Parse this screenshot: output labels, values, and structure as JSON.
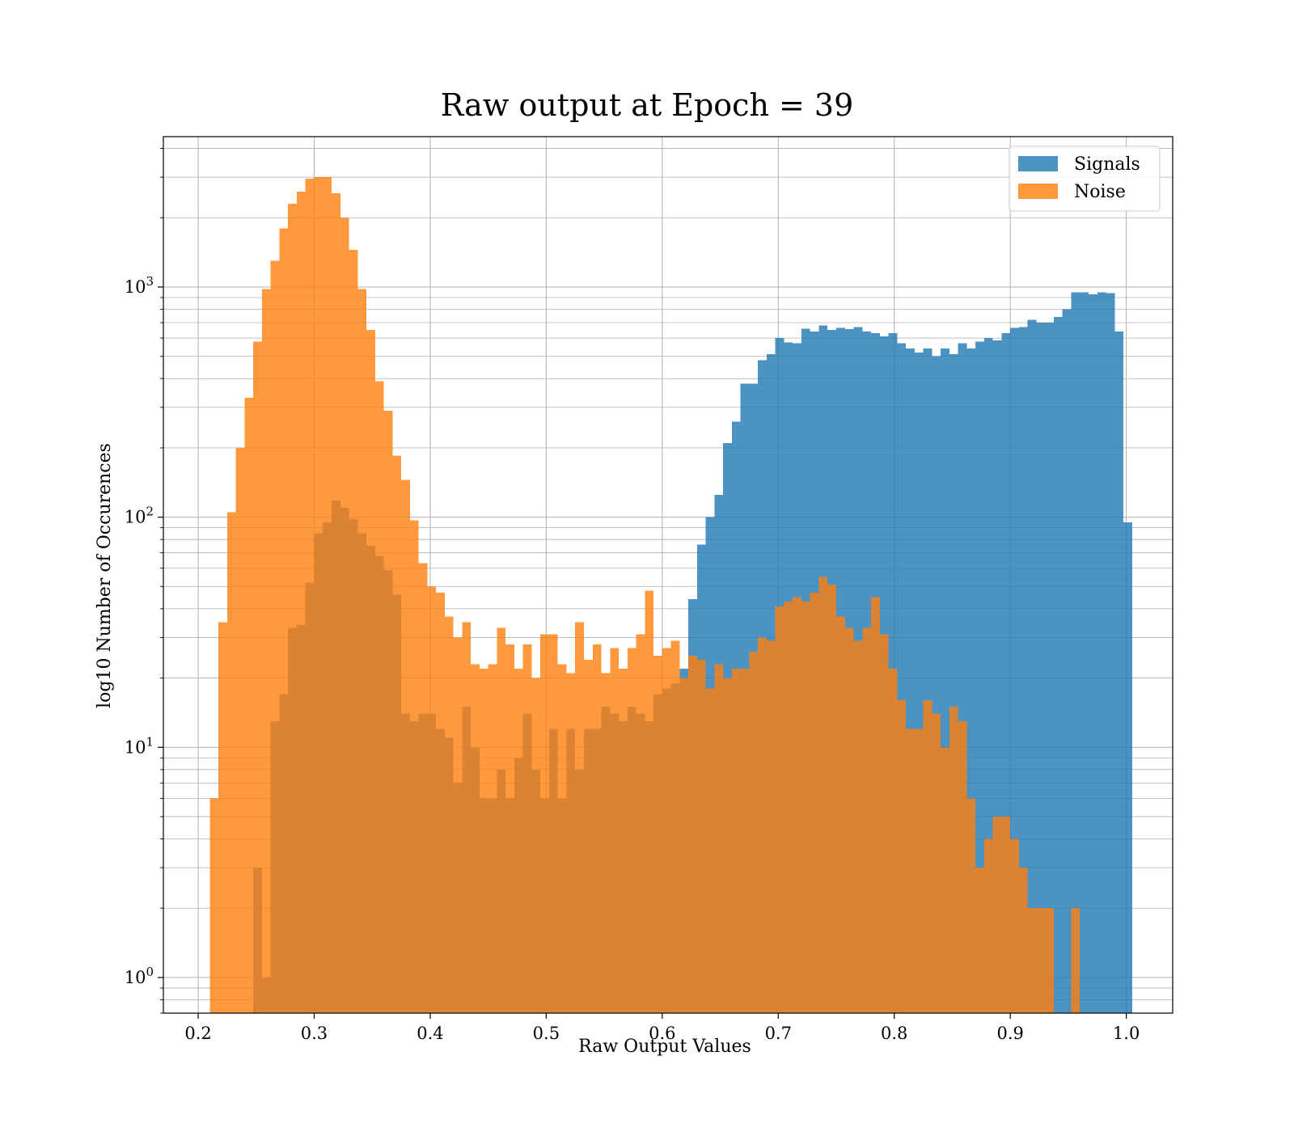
{
  "chart_data": {
    "type": "histogram",
    "title": "Raw output at Epoch = 39",
    "xlabel": "Raw Output Values",
    "ylabel": "log10 Number of Occurences",
    "x_scale": "linear",
    "y_scale": "log",
    "xlim": [
      0.17,
      1.04
    ],
    "ylim": [
      0.7,
      4500
    ],
    "x_ticks": [
      0.2,
      0.3,
      0.4,
      0.5,
      0.6,
      0.7,
      0.8,
      0.9,
      1.0
    ],
    "x_tick_labels": [
      "0.2",
      "0.3",
      "0.4",
      "0.5",
      "0.6",
      "0.7",
      "0.8",
      "0.9",
      "1.0"
    ],
    "y_ticks": [
      1,
      10,
      100,
      1000
    ],
    "y_tick_labels": [
      {
        "base": "10",
        "exp": "0"
      },
      {
        "base": "10",
        "exp": "1"
      },
      {
        "base": "10",
        "exp": "2"
      },
      {
        "base": "10",
        "exp": "3"
      }
    ],
    "grid": true,
    "grid_minor_y": true,
    "legend_position": "top-right",
    "bin_width": 0.0075,
    "series": [
      {
        "name": "Signals",
        "color": "#1f77b4",
        "opacity": 0.8,
        "bins": [
          [
            0.2475,
            0.255,
            3
          ],
          [
            0.255,
            0.2625,
            1
          ],
          [
            0.2625,
            0.27,
            13
          ],
          [
            0.27,
            0.2775,
            17
          ],
          [
            0.2775,
            0.285,
            33
          ],
          [
            0.285,
            0.2925,
            34
          ],
          [
            0.2925,
            0.3,
            52
          ],
          [
            0.3,
            0.3075,
            85
          ],
          [
            0.3075,
            0.315,
            95
          ],
          [
            0.315,
            0.3225,
            118
          ],
          [
            0.3225,
            0.33,
            110
          ],
          [
            0.33,
            0.3375,
            98
          ],
          [
            0.3375,
            0.345,
            85
          ],
          [
            0.345,
            0.3525,
            75
          ],
          [
            0.3525,
            0.36,
            68
          ],
          [
            0.36,
            0.3675,
            59
          ],
          [
            0.3675,
            0.375,
            46
          ],
          [
            0.375,
            0.3825,
            14
          ],
          [
            0.3825,
            0.39,
            13
          ],
          [
            0.39,
            0.3975,
            14
          ],
          [
            0.3975,
            0.405,
            14
          ],
          [
            0.405,
            0.4125,
            12
          ],
          [
            0.4125,
            0.42,
            11
          ],
          [
            0.42,
            0.4275,
            7
          ],
          [
            0.4275,
            0.435,
            15
          ],
          [
            0.435,
            0.4425,
            10
          ],
          [
            0.4425,
            0.45,
            6
          ],
          [
            0.45,
            0.4575,
            6
          ],
          [
            0.4575,
            0.465,
            8
          ],
          [
            0.465,
            0.4725,
            6
          ],
          [
            0.4725,
            0.48,
            9
          ],
          [
            0.48,
            0.4875,
            14
          ],
          [
            0.4875,
            0.495,
            8
          ],
          [
            0.495,
            0.5025,
            6
          ],
          [
            0.5025,
            0.51,
            12
          ],
          [
            0.51,
            0.5175,
            6
          ],
          [
            0.5175,
            0.525,
            12
          ],
          [
            0.525,
            0.5325,
            8
          ],
          [
            0.5325,
            0.54,
            12
          ],
          [
            0.54,
            0.5475,
            12
          ],
          [
            0.5475,
            0.555,
            15
          ],
          [
            0.555,
            0.5625,
            14
          ],
          [
            0.5625,
            0.57,
            13
          ],
          [
            0.57,
            0.5775,
            15
          ],
          [
            0.5775,
            0.585,
            14
          ],
          [
            0.585,
            0.5925,
            13
          ],
          [
            0.5925,
            0.6,
            17
          ],
          [
            0.6,
            0.6075,
            18
          ],
          [
            0.6075,
            0.615,
            19
          ],
          [
            0.615,
            0.6225,
            22
          ],
          [
            0.6225,
            0.63,
            44
          ],
          [
            0.63,
            0.6375,
            76
          ],
          [
            0.6375,
            0.645,
            100
          ],
          [
            0.645,
            0.6525,
            125
          ],
          [
            0.6525,
            0.66,
            210
          ],
          [
            0.66,
            0.6675,
            260
          ],
          [
            0.6675,
            0.675,
            380
          ],
          [
            0.675,
            0.6825,
            380
          ],
          [
            0.6825,
            0.69,
            480
          ],
          [
            0.69,
            0.6975,
            510
          ],
          [
            0.6975,
            0.705,
            600
          ],
          [
            0.705,
            0.7125,
            575
          ],
          [
            0.7125,
            0.72,
            570
          ],
          [
            0.72,
            0.7275,
            660
          ],
          [
            0.7275,
            0.735,
            640
          ],
          [
            0.735,
            0.7425,
            680
          ],
          [
            0.7425,
            0.75,
            650
          ],
          [
            0.75,
            0.7575,
            665
          ],
          [
            0.7575,
            0.765,
            655
          ],
          [
            0.765,
            0.7725,
            670
          ],
          [
            0.7725,
            0.78,
            640
          ],
          [
            0.78,
            0.7875,
            630
          ],
          [
            0.7875,
            0.795,
            610
          ],
          [
            0.795,
            0.8025,
            630
          ],
          [
            0.8025,
            0.81,
            570
          ],
          [
            0.81,
            0.8175,
            540
          ],
          [
            0.8175,
            0.825,
            520
          ],
          [
            0.825,
            0.8325,
            540
          ],
          [
            0.8325,
            0.84,
            500
          ],
          [
            0.84,
            0.8475,
            540
          ],
          [
            0.8475,
            0.855,
            510
          ],
          [
            0.855,
            0.8625,
            570
          ],
          [
            0.8625,
            0.87,
            540
          ],
          [
            0.87,
            0.8775,
            580
          ],
          [
            0.8775,
            0.885,
            600
          ],
          [
            0.885,
            0.8925,
            585
          ],
          [
            0.8925,
            0.9,
            630
          ],
          [
            0.9,
            0.9075,
            665
          ],
          [
            0.9075,
            0.915,
            670
          ],
          [
            0.915,
            0.9225,
            720
          ],
          [
            0.9225,
            0.93,
            700
          ],
          [
            0.93,
            0.9375,
            700
          ],
          [
            0.9375,
            0.945,
            740
          ],
          [
            0.945,
            0.9525,
            800
          ],
          [
            0.9525,
            0.96,
            950
          ],
          [
            0.96,
            0.9675,
            950
          ],
          [
            0.9675,
            0.975,
            930
          ],
          [
            0.975,
            0.9825,
            950
          ],
          [
            0.9825,
            0.99,
            940
          ],
          [
            0.99,
            0.9975,
            640
          ],
          [
            0.9975,
            1.005,
            95
          ]
        ]
      },
      {
        "name": "Noise",
        "color": "#ff7f0e",
        "opacity": 0.8,
        "bins": [
          [
            0.21,
            0.2175,
            6
          ],
          [
            0.2175,
            0.225,
            35
          ],
          [
            0.225,
            0.2325,
            105
          ],
          [
            0.2325,
            0.24,
            200
          ],
          [
            0.24,
            0.2475,
            330
          ],
          [
            0.2475,
            0.255,
            580
          ],
          [
            0.255,
            0.2625,
            980
          ],
          [
            0.2625,
            0.27,
            1300
          ],
          [
            0.27,
            0.2775,
            1800
          ],
          [
            0.2775,
            0.285,
            2300
          ],
          [
            0.285,
            0.2925,
            2600
          ],
          [
            0.2925,
            0.3,
            2950
          ],
          [
            0.3,
            0.3075,
            3000
          ],
          [
            0.3075,
            0.315,
            3000
          ],
          [
            0.315,
            0.3225,
            2550
          ],
          [
            0.3225,
            0.33,
            2000
          ],
          [
            0.33,
            0.3375,
            1450
          ],
          [
            0.3375,
            0.345,
            980
          ],
          [
            0.345,
            0.3525,
            650
          ],
          [
            0.3525,
            0.36,
            390
          ],
          [
            0.36,
            0.3675,
            290
          ],
          [
            0.3675,
            0.375,
            185
          ],
          [
            0.375,
            0.3825,
            145
          ],
          [
            0.3825,
            0.39,
            97
          ],
          [
            0.39,
            0.3975,
            63
          ],
          [
            0.3975,
            0.405,
            50
          ],
          [
            0.405,
            0.4125,
            47
          ],
          [
            0.4125,
            0.42,
            37
          ],
          [
            0.42,
            0.4275,
            30
          ],
          [
            0.4275,
            0.435,
            35
          ],
          [
            0.435,
            0.4425,
            23
          ],
          [
            0.4425,
            0.45,
            22
          ],
          [
            0.45,
            0.4575,
            23
          ],
          [
            0.4575,
            0.465,
            33
          ],
          [
            0.465,
            0.4725,
            28
          ],
          [
            0.4725,
            0.48,
            22
          ],
          [
            0.48,
            0.4875,
            28
          ],
          [
            0.4875,
            0.495,
            20
          ],
          [
            0.495,
            0.5025,
            31
          ],
          [
            0.5025,
            0.51,
            31
          ],
          [
            0.51,
            0.5175,
            23
          ],
          [
            0.5175,
            0.525,
            21
          ],
          [
            0.525,
            0.5325,
            35
          ],
          [
            0.5325,
            0.54,
            24
          ],
          [
            0.54,
            0.5475,
            28
          ],
          [
            0.5475,
            0.555,
            21
          ],
          [
            0.555,
            0.5625,
            27
          ],
          [
            0.5625,
            0.57,
            22
          ],
          [
            0.57,
            0.5775,
            27
          ],
          [
            0.5775,
            0.585,
            31
          ],
          [
            0.585,
            0.5925,
            48
          ],
          [
            0.5925,
            0.6,
            25
          ],
          [
            0.6,
            0.6075,
            27
          ],
          [
            0.6075,
            0.615,
            29
          ],
          [
            0.615,
            0.6225,
            20
          ],
          [
            0.6225,
            0.63,
            25
          ],
          [
            0.63,
            0.6375,
            24
          ],
          [
            0.6375,
            0.645,
            18
          ],
          [
            0.645,
            0.6525,
            23
          ],
          [
            0.6525,
            0.66,
            20
          ],
          [
            0.66,
            0.6675,
            22
          ],
          [
            0.6675,
            0.675,
            22
          ],
          [
            0.675,
            0.6825,
            26
          ],
          [
            0.6825,
            0.69,
            30
          ],
          [
            0.69,
            0.6975,
            29
          ],
          [
            0.6975,
            0.705,
            41
          ],
          [
            0.705,
            0.7125,
            43
          ],
          [
            0.7125,
            0.72,
            45
          ],
          [
            0.72,
            0.7275,
            43
          ],
          [
            0.7275,
            0.735,
            47
          ],
          [
            0.735,
            0.7425,
            55
          ],
          [
            0.7425,
            0.75,
            51
          ],
          [
            0.75,
            0.7575,
            37
          ],
          [
            0.7575,
            0.765,
            33
          ],
          [
            0.765,
            0.7725,
            29
          ],
          [
            0.7725,
            0.78,
            33
          ],
          [
            0.78,
            0.7875,
            45
          ],
          [
            0.7875,
            0.795,
            31
          ],
          [
            0.795,
            0.8025,
            22
          ],
          [
            0.8025,
            0.81,
            16
          ],
          [
            0.81,
            0.8175,
            12
          ],
          [
            0.8175,
            0.825,
            12
          ],
          [
            0.825,
            0.8325,
            16
          ],
          [
            0.8325,
            0.84,
            14
          ],
          [
            0.84,
            0.8475,
            10
          ],
          [
            0.8475,
            0.855,
            15
          ],
          [
            0.855,
            0.8625,
            13
          ],
          [
            0.8625,
            0.87,
            6
          ],
          [
            0.87,
            0.8775,
            3
          ],
          [
            0.8775,
            0.885,
            4
          ],
          [
            0.885,
            0.8925,
            5
          ],
          [
            0.8925,
            0.9,
            5
          ],
          [
            0.9,
            0.9075,
            4
          ],
          [
            0.9075,
            0.915,
            3
          ],
          [
            0.915,
            0.9225,
            2
          ],
          [
            0.9225,
            0.93,
            2
          ],
          [
            0.93,
            0.9375,
            2
          ],
          [
            0.9375,
            0.945,
            0.5
          ],
          [
            0.945,
            0.9525,
            0.5
          ],
          [
            0.9525,
            0.96,
            2
          ]
        ]
      }
    ]
  }
}
